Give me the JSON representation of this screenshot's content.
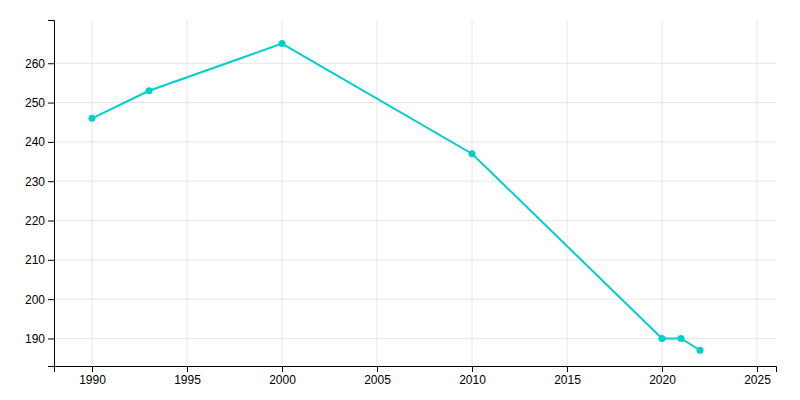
{
  "chart_data": {
    "type": "line",
    "x": [
      1990,
      1993,
      2000,
      2010,
      2020,
      2021,
      2022
    ],
    "values": [
      246,
      253,
      265,
      237,
      190,
      190,
      187
    ],
    "color": "#00CED1",
    "marker": "circle",
    "xlim": [
      1988,
      2026
    ],
    "ylim": [
      183,
      271
    ],
    "xticks": [
      1990,
      1995,
      2000,
      2005,
      2010,
      2015,
      2020,
      2025
    ],
    "yticks": [
      190,
      200,
      210,
      220,
      230,
      240,
      250,
      260
    ],
    "grid": true
  }
}
